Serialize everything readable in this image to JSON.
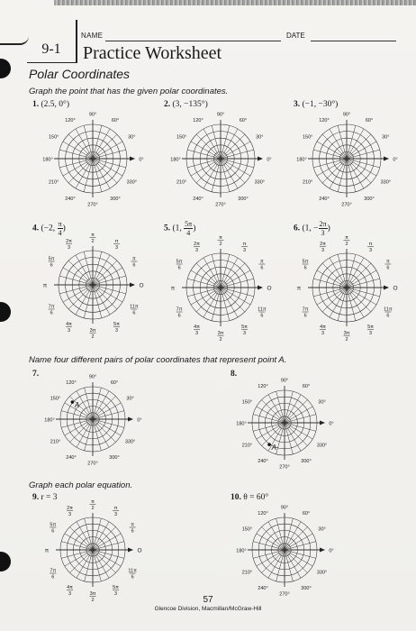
{
  "header": {
    "lesson": "9-1",
    "name_label": "NAME",
    "date_label": "DATE",
    "title": "Practice Worksheet"
  },
  "section_title": "Polar Coordinates",
  "instructions": {
    "graph_points": "Graph the point that has the given polar coordinates.",
    "four_pairs": "Name four different pairs of polar coordinates that represent point A.",
    "graph_equation": "Graph each polar equation."
  },
  "degree_labels": [
    "0°",
    "30°",
    "60°",
    "90°",
    "120°",
    "150°",
    "180°",
    "210°",
    "240°",
    "270°",
    "300°",
    "330°"
  ],
  "radian_labels": {
    "pi_2": {
      "num": "π",
      "den": "2"
    },
    "pi_3": {
      "num": "π",
      "den": "3"
    },
    "2pi_3": {
      "num": "2π",
      "den": "3"
    },
    "pi_6": {
      "num": "π",
      "den": "6"
    },
    "5pi_6": {
      "num": "5π",
      "den": "6"
    },
    "pi": {
      "num": "π",
      "den": ""
    },
    "zero": {
      "num": "O",
      "den": ""
    },
    "7pi_6": {
      "num": "7π",
      "den": "6"
    },
    "11pi_6": {
      "num": "11π",
      "den": "6"
    },
    "4pi_3": {
      "num": "4π",
      "den": "3"
    },
    "3pi_2": {
      "num": "3π",
      "den": "2"
    },
    "5pi_3": {
      "num": "5π",
      "den": "3"
    }
  },
  "problems": [
    {
      "number": "1.",
      "text": "(2.5, 0°)"
    },
    {
      "number": "2.",
      "text": "(3, −135°)"
    },
    {
      "number": "3.",
      "text": "(−1, −30°)"
    },
    {
      "number": "4.",
      "pre": "(−2, ",
      "frac_num": "π",
      "frac_den": "4",
      "post": ")"
    },
    {
      "number": "5.",
      "pre": "(1, ",
      "frac_num": "5π",
      "frac_den": "4",
      "post": ")"
    },
    {
      "number": "6.",
      "pre": "(1, −",
      "frac_num": "2π",
      "frac_den": "3",
      "post": ")"
    },
    {
      "number": "7.",
      "text": ""
    },
    {
      "number": "8.",
      "text": ""
    },
    {
      "number": "9.",
      "text": "r = 3"
    },
    {
      "number": "10.",
      "text": "θ = 60°"
    }
  ],
  "point_label": "A",
  "footer": {
    "page_number": "57",
    "credit": "Glencoe Division, Macmillan/McGraw-Hill"
  }
}
